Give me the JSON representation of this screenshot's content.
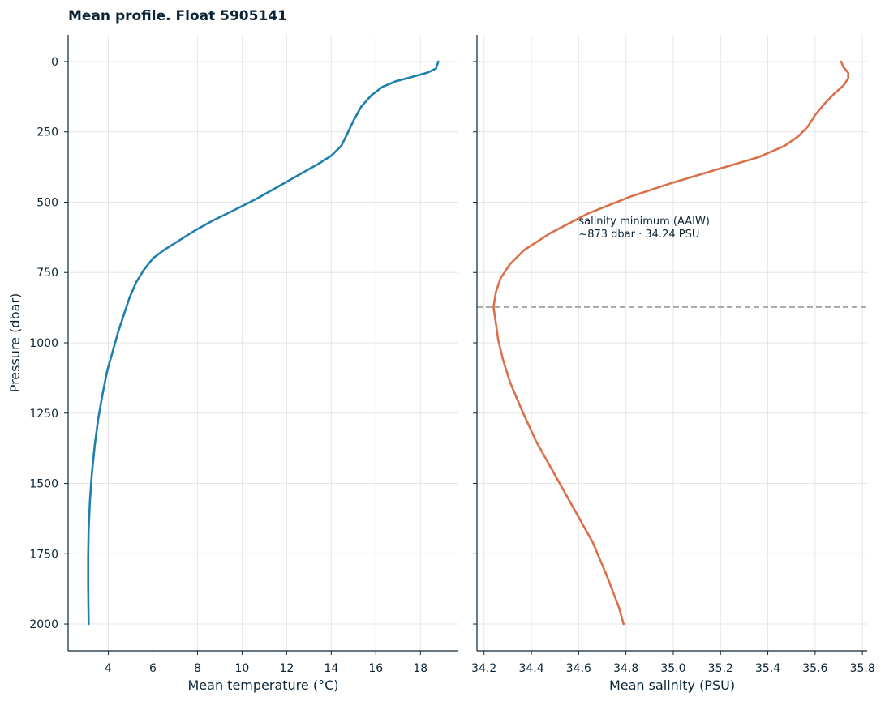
{
  "title": "Mean profile. Float 5905141",
  "chart_data": [
    {
      "type": "line",
      "xlabel": "Mean temperature (°C)",
      "ylabel": "Pressure (dbar)",
      "xlim": [
        2.2,
        19.7
      ],
      "ylim": [
        2095,
        -95
      ],
      "y_inverted": true,
      "grid": true,
      "xticks": [
        4,
        6,
        8,
        10,
        12,
        14,
        16,
        18
      ],
      "yticks": [
        0,
        250,
        500,
        750,
        1000,
        1250,
        1500,
        1750,
        2000
      ],
      "series": [
        {
          "color": "#1f7fad",
          "points": [
            [
              18.8,
              0
            ],
            [
              18.7,
              25
            ],
            [
              18.3,
              40
            ],
            [
              17.6,
              55
            ],
            [
              16.9,
              70
            ],
            [
              16.3,
              90
            ],
            [
              15.8,
              120
            ],
            [
              15.35,
              160
            ],
            [
              15.0,
              210
            ],
            [
              14.7,
              260
            ],
            [
              14.45,
              300
            ],
            [
              14.0,
              335
            ],
            [
              13.4,
              365
            ],
            [
              12.5,
              405
            ],
            [
              11.5,
              450
            ],
            [
              10.6,
              490
            ],
            [
              9.6,
              530
            ],
            [
              8.7,
              565
            ],
            [
              7.9,
              600
            ],
            [
              7.2,
              635
            ],
            [
              6.5,
              670
            ],
            [
              6.0,
              700
            ],
            [
              5.6,
              740
            ],
            [
              5.25,
              785
            ],
            [
              4.95,
              840
            ],
            [
              4.7,
              900
            ],
            [
              4.45,
              960
            ],
            [
              4.2,
              1030
            ],
            [
              3.95,
              1100
            ],
            [
              3.75,
              1180
            ],
            [
              3.55,
              1270
            ],
            [
              3.4,
              1360
            ],
            [
              3.27,
              1460
            ],
            [
              3.18,
              1560
            ],
            [
              3.12,
              1660
            ],
            [
              3.1,
              1760
            ],
            [
              3.1,
              1860
            ],
            [
              3.12,
              2000
            ]
          ]
        }
      ]
    },
    {
      "type": "line",
      "xlabel": "Mean salinity (PSU)",
      "xlim": [
        34.17,
        35.82
      ],
      "ylim": [
        2095,
        -95
      ],
      "y_inverted": true,
      "grid": true,
      "xticks": [
        "34.2",
        "34.4",
        "34.6",
        "34.8",
        "35.0",
        "35.2",
        "35.4",
        "35.6",
        "35.8"
      ],
      "series": [
        {
          "color": "#d9704a",
          "points": [
            [
              35.71,
              0
            ],
            [
              35.72,
              20
            ],
            [
              35.74,
              40
            ],
            [
              35.74,
              60
            ],
            [
              35.72,
              85
            ],
            [
              35.68,
              115
            ],
            [
              35.64,
              150
            ],
            [
              35.6,
              190
            ],
            [
              35.57,
              230
            ],
            [
              35.53,
              265
            ],
            [
              35.47,
              300
            ],
            [
              35.36,
              340
            ],
            [
              35.2,
              380
            ],
            [
              35.0,
              430
            ],
            [
              34.82,
              480
            ],
            [
              34.64,
              540
            ],
            [
              34.48,
              610
            ],
            [
              34.37,
              670
            ],
            [
              34.31,
              720
            ],
            [
              34.27,
              770
            ],
            [
              34.25,
              820
            ],
            [
              34.24,
              873
            ],
            [
              34.25,
              930
            ],
            [
              34.26,
              990
            ],
            [
              34.28,
              1060
            ],
            [
              34.31,
              1140
            ],
            [
              34.36,
              1240
            ],
            [
              34.42,
              1350
            ],
            [
              34.5,
              1470
            ],
            [
              34.58,
              1590
            ],
            [
              34.66,
              1710
            ],
            [
              34.72,
              1830
            ],
            [
              34.77,
              1940
            ],
            [
              34.79,
              2000
            ]
          ]
        }
      ],
      "reference_line": {
        "y": 873,
        "color": "#a6a6a6",
        "style": "dashed"
      },
      "annotation": {
        "x": 34.6,
        "y": 565,
        "lines": [
          "salinity minimum (AAIW)",
          "~873 dbar · 34.24 PSU"
        ]
      }
    }
  ]
}
